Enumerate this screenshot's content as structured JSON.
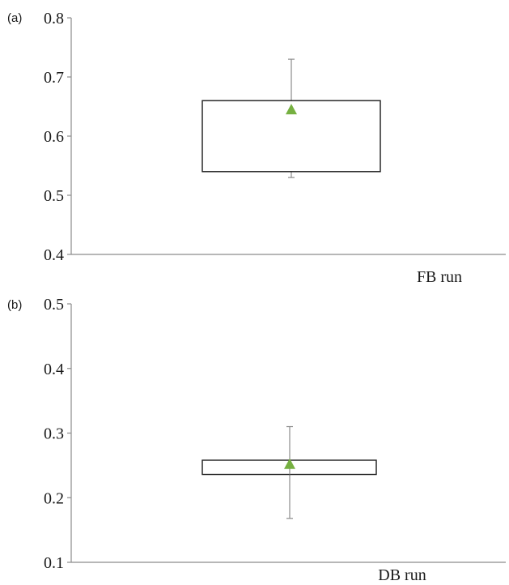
{
  "chart_data": [
    {
      "type": "box",
      "panel_label": "(a)",
      "category": "FB run",
      "ylim": [
        0.4,
        0.8
      ],
      "yticks": [
        "0.4",
        "0.5",
        "0.6",
        "0.7",
        "0.8"
      ],
      "yticks_values": [
        0.4,
        0.5,
        0.6,
        0.7,
        0.8
      ],
      "box": {
        "q1": 0.54,
        "q3": 0.66,
        "min": 0.53,
        "max": 0.73,
        "mean": 0.645
      },
      "grid": false,
      "legend": "none"
    },
    {
      "type": "box",
      "panel_label": "(b)",
      "category": "DB run",
      "ylim": [
        0.1,
        0.5
      ],
      "yticks": [
        "0.1",
        "0.2",
        "0.3",
        "0.4",
        "0.5"
      ],
      "yticks_values": [
        0.1,
        0.2,
        0.3,
        0.4,
        0.5
      ],
      "box": {
        "q1": 0.236,
        "q3": 0.258,
        "min": 0.168,
        "max": 0.31,
        "mean": 0.252
      },
      "grid": false,
      "legend": "none"
    }
  ],
  "colors": {
    "mean_marker": "#76b041",
    "whisker": "#8c8c8c",
    "box_stroke": "#1a1a1a",
    "axis": "#8c8c8c"
  },
  "icons": {
    "mean_marker": "triangle-marker-icon"
  }
}
